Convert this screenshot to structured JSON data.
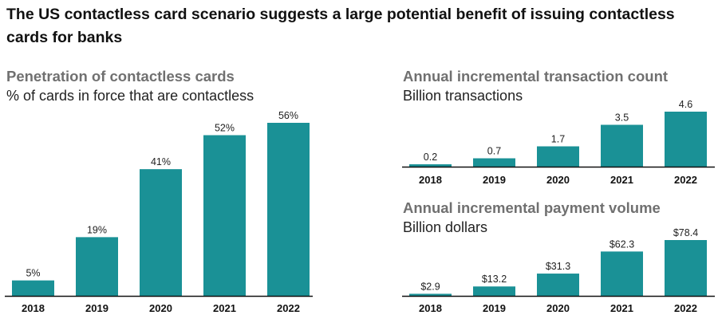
{
  "title": "The US contactless card scenario suggests a large potential benefit of issuing contactless cards for banks",
  "bar_color": "#1a9196",
  "chart_data": [
    {
      "type": "bar",
      "title": "Penetration of contactless cards",
      "subtitle": "% of cards in force that are contactless",
      "categories": [
        "2018",
        "2019",
        "2020",
        "2021",
        "2022"
      ],
      "values": [
        5,
        19,
        41,
        52,
        56
      ],
      "labels": [
        "5%",
        "19%",
        "41%",
        "52%",
        "56%"
      ],
      "xlabel": "",
      "ylabel": "",
      "grid": false
    },
    {
      "type": "bar",
      "title": "Annual incremental transaction count",
      "subtitle": "Billion transactions",
      "categories": [
        "2018",
        "2019",
        "2020",
        "2021",
        "2022"
      ],
      "values": [
        0.2,
        0.7,
        1.7,
        3.5,
        4.6
      ],
      "labels": [
        "0.2",
        "0.7",
        "1.7",
        "3.5",
        "4.6"
      ],
      "xlabel": "",
      "ylabel": "",
      "grid": false
    },
    {
      "type": "bar",
      "title": "Annual incremental payment volume",
      "subtitle": "Billion dollars",
      "categories": [
        "2018",
        "2019",
        "2020",
        "2021",
        "2022"
      ],
      "values": [
        2.9,
        13.2,
        31.3,
        62.3,
        78.4
      ],
      "labels": [
        "$2.9",
        "$13.2",
        "$31.3",
        "$62.3",
        "$78.4"
      ],
      "xlabel": "",
      "ylabel": "",
      "grid": false
    }
  ]
}
